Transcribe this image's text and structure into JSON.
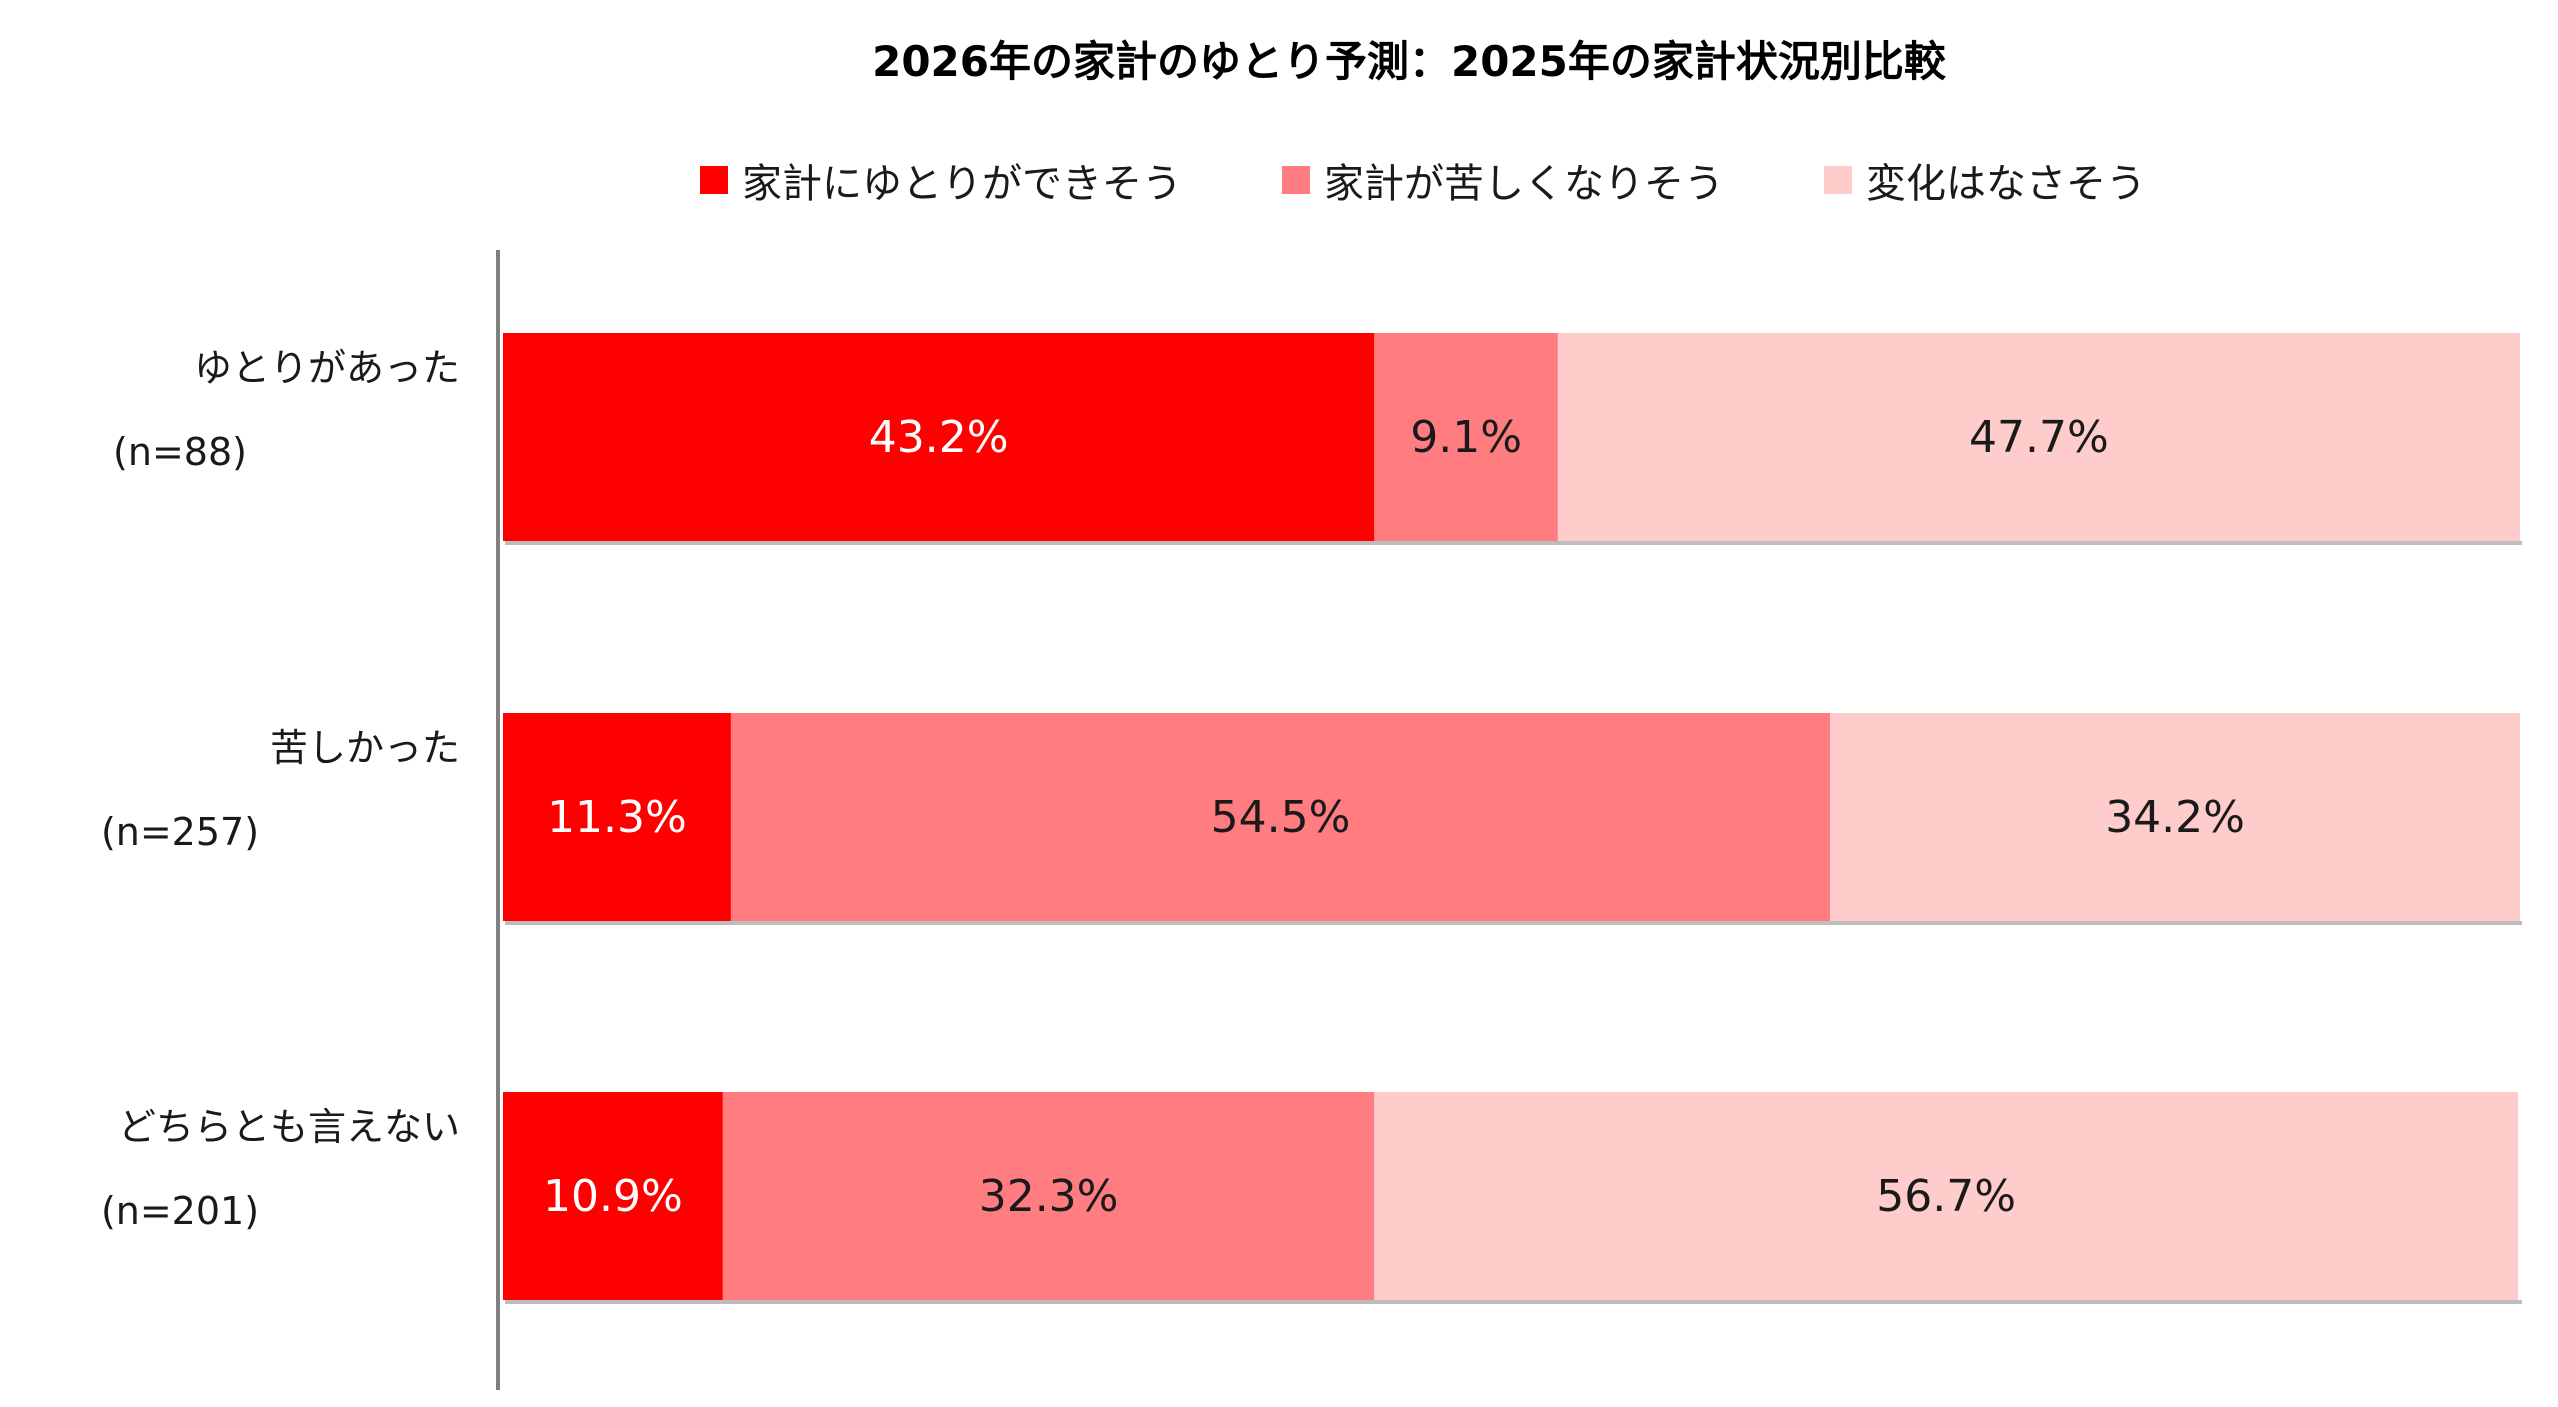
{
  "chart_data": {
    "type": "bar",
    "orientation": "horizontal",
    "stacked": true,
    "title": "2026年の家計のゆとり予測：2025年の家計状況別比較",
    "categories": [
      {
        "label": "ゆとりがあった",
        "n": "(n=88)"
      },
      {
        "label": "苦しかった",
        "n": "(n=257)"
      },
      {
        "label": "どちらとも言えない",
        "n": "(n=201)"
      }
    ],
    "series": [
      {
        "name": "家計にゆとりができそう",
        "color": "#ff0000",
        "label_color": "#ffffff",
        "values": [
          43.2,
          11.3,
          10.9
        ]
      },
      {
        "name": "家計が苦しくなりそう",
        "color": "#ff7c80",
        "label_color": "#1a1a1a",
        "values": [
          9.1,
          54.5,
          32.3
        ]
      },
      {
        "name": "変化はなさそう",
        "color": "#ffcccc",
        "label_color": "#1a1a1a",
        "values": [
          47.7,
          34.2,
          56.7
        ]
      }
    ],
    "value_suffix": "%",
    "xlim": [
      0,
      100
    ],
    "grid": false,
    "legend_position": "top"
  }
}
